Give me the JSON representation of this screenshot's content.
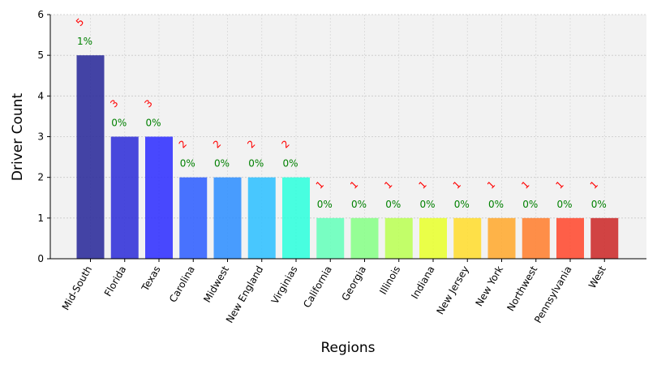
{
  "chart_data": {
    "type": "bar",
    "title": "",
    "xlabel": "Regions",
    "ylabel": "Driver Count",
    "ylim": [
      0,
      6
    ],
    "yticks": [
      0,
      1,
      2,
      3,
      4,
      5,
      6
    ],
    "grid": true,
    "categories": [
      "Mid-South",
      "Florida",
      "Texas",
      "Carolina",
      "Midwest",
      "New England",
      "Virginias",
      "California",
      "Georgia",
      "Illinois",
      "Indiana",
      "New Jersey",
      "New York",
      "Northwest",
      "Pennsylvania",
      "West"
    ],
    "values": [
      5,
      3,
      3,
      2,
      2,
      2,
      2,
      1,
      1,
      1,
      1,
      1,
      1,
      1,
      1,
      1
    ],
    "value_labels": [
      "5",
      "3",
      "3",
      "2",
      "2",
      "2",
      "2",
      "1",
      "1",
      "1",
      "1",
      "1",
      "1",
      "1",
      "1",
      "1"
    ],
    "percent_labels": [
      "1%",
      "0%",
      "0%",
      "0%",
      "0%",
      "0%",
      "0%",
      "0%",
      "0%",
      "0%",
      "0%",
      "0%",
      "0%",
      "0%",
      "0%",
      "0%"
    ],
    "colors": [
      "#2a2a9a",
      "#3030d8",
      "#3030ff",
      "#3060ff",
      "#3090ff",
      "#30c0ff",
      "#30ffdd",
      "#66ffbb",
      "#88ff88",
      "#bbff55",
      "#e8ff30",
      "#ffdd30",
      "#ffaa30",
      "#ff7f30",
      "#ff4a30",
      "#cc2a2a"
    ],
    "value_label_color": "#ff0000",
    "percent_label_color": "#008000",
    "plot_background": "#f2f2f2"
  }
}
